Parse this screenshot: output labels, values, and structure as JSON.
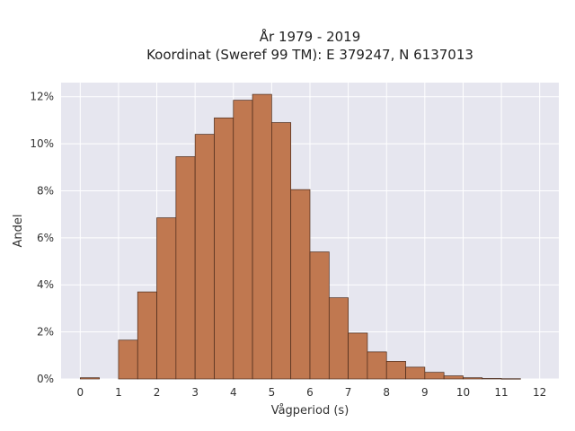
{
  "chart_data": {
    "type": "bar",
    "title": "År 1979 - 2019",
    "subtitle": "Koordinat (Sweref 99 TM): E 379247, N 6137013",
    "xlabel": "Vågperiod (s)",
    "ylabel": "Andel",
    "xlim": [
      -0.5,
      12.5
    ],
    "ylim": [
      0,
      12.6
    ],
    "x_ticks": [
      "0",
      "1",
      "2",
      "3",
      "4",
      "5",
      "6",
      "7",
      "8",
      "9",
      "10",
      "11",
      "12"
    ],
    "y_ticks": [
      {
        "value": 0,
        "label": "0%"
      },
      {
        "value": 2,
        "label": "2%"
      },
      {
        "value": 4,
        "label": "4%"
      },
      {
        "value": 6,
        "label": "6%"
      },
      {
        "value": 8,
        "label": "8%"
      },
      {
        "value": 10,
        "label": "10%"
      },
      {
        "value": 12,
        "label": "12%"
      }
    ],
    "bin_width": 0.5,
    "bins": [
      {
        "x0": 0.0,
        "value": 0.05
      },
      {
        "x0": 1.0,
        "value": 1.65
      },
      {
        "x0": 1.5,
        "value": 3.7
      },
      {
        "x0": 2.0,
        "value": 6.85
      },
      {
        "x0": 2.5,
        "value": 9.45
      },
      {
        "x0": 3.0,
        "value": 10.4
      },
      {
        "x0": 3.5,
        "value": 11.1
      },
      {
        "x0": 4.0,
        "value": 11.85
      },
      {
        "x0": 4.5,
        "value": 12.1
      },
      {
        "x0": 5.0,
        "value": 10.9
      },
      {
        "x0": 5.5,
        "value": 8.05
      },
      {
        "x0": 6.0,
        "value": 5.4
      },
      {
        "x0": 6.5,
        "value": 3.45
      },
      {
        "x0": 7.0,
        "value": 1.95
      },
      {
        "x0": 7.5,
        "value": 1.15
      },
      {
        "x0": 8.0,
        "value": 0.75
      },
      {
        "x0": 8.5,
        "value": 0.5
      },
      {
        "x0": 9.0,
        "value": 0.28
      },
      {
        "x0": 9.5,
        "value": 0.13
      },
      {
        "x0": 10.0,
        "value": 0.05
      },
      {
        "x0": 10.5,
        "value": 0.02
      },
      {
        "x0": 11.0,
        "value": 0.01
      }
    ],
    "grid": true,
    "colors": {
      "bar_fill": "#c07850",
      "bar_stroke": "#4a2a1a",
      "plot_background": "#e6e6ef",
      "grid": "#ffffff"
    }
  }
}
